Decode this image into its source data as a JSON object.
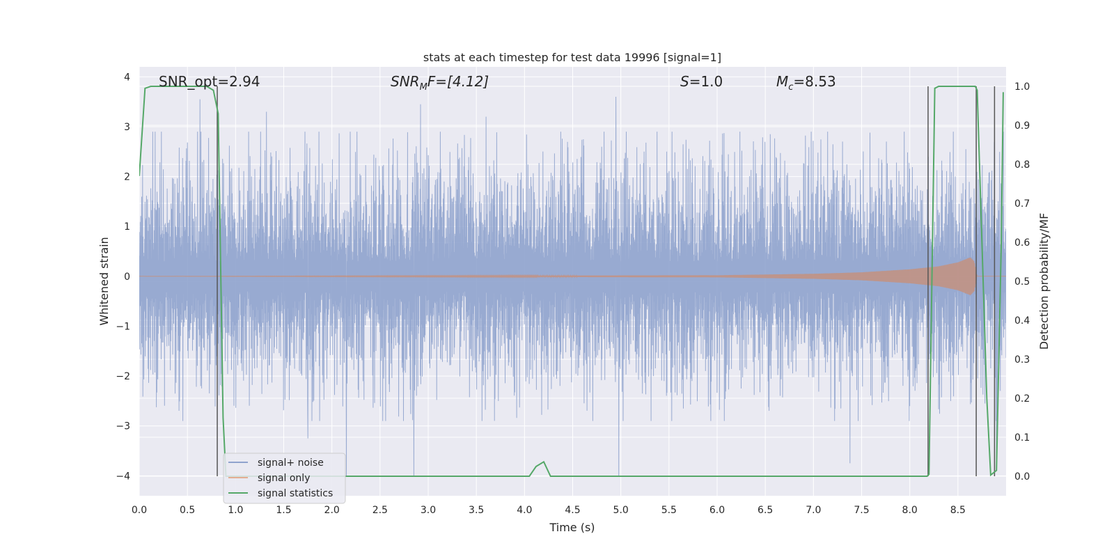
{
  "chart_data": {
    "type": "line",
    "title": "stats at each timestep for test data 19996 [signal=1]",
    "xlabel": "Time (s)",
    "ylabel": "Whitened strain",
    "ylabel_right": "Detection probability/MF",
    "xlim": [
      0.0,
      9.0
    ],
    "ylim": [
      -4.4,
      4.2
    ],
    "ylim_right": [
      -0.05,
      1.05
    ],
    "x_ticks": [
      "0.0",
      "0.5",
      "1.0",
      "1.5",
      "2.0",
      "2.5",
      "3.0",
      "3.5",
      "4.0",
      "4.5",
      "5.0",
      "5.5",
      "6.0",
      "6.5",
      "7.0",
      "7.5",
      "8.0",
      "8.5"
    ],
    "y_ticks": [
      "4",
      "3",
      "2",
      "1",
      "0",
      "−1",
      "−2",
      "−3",
      "−4"
    ],
    "y_ticks_right": [
      "1.0",
      "0.9",
      "0.8",
      "0.7",
      "0.6",
      "0.5",
      "0.4",
      "0.3",
      "0.2",
      "0.1",
      "0.0"
    ],
    "grid": true,
    "legend": {
      "placement": "lower-left",
      "entries": [
        {
          "name": "signal+ noise",
          "color": "#8fa3cd"
        },
        {
          "name": "signal only",
          "color": "#dd8452"
        },
        {
          "name": "signal statistics",
          "color": "#55a868"
        }
      ]
    },
    "annotations": {
      "snr_opt": "SNR_opt=2.94",
      "snr_mf_base": "SNR",
      "snr_mf_sub": "M",
      "snr_mf_rest": "F=[4.12]",
      "s_base": "S",
      "s_rest": "=1.0",
      "mc_base": "M",
      "mc_sub": "c",
      "mc_rest": "=8.53"
    },
    "series": [
      {
        "name": "signal+ noise",
        "kind": "noise",
        "x_range": [
          0.0,
          9.0
        ],
        "envelope_typical": 1.8,
        "extremes": [
          {
            "x": 0.63,
            "y": 3.55
          },
          {
            "x": 1.32,
            "y": 3.3
          },
          {
            "x": 2.15,
            "y": -4.0
          },
          {
            "x": 2.85,
            "y": -4.0
          },
          {
            "x": 2.92,
            "y": 3.45
          },
          {
            "x": 4.95,
            "y": 3.6
          },
          {
            "x": 4.98,
            "y": -4.0
          },
          {
            "x": 7.38,
            "y": -3.75
          },
          {
            "x": 8.78,
            "y": -2.55
          },
          {
            "x": 8.9,
            "y": -3.8
          },
          {
            "x": 1.75,
            "y": -3.25
          },
          {
            "x": 3.6,
            "y": 3.2
          }
        ]
      },
      {
        "name": "signal only",
        "kind": "chirp",
        "x": [
          0.0,
          6.0,
          7.0,
          7.5,
          8.0,
          8.3,
          8.5,
          8.63,
          8.67,
          8.7,
          9.0
        ],
        "amplitude": [
          0.0,
          0.02,
          0.05,
          0.08,
          0.14,
          0.2,
          0.28,
          0.38,
          0.3,
          0.0,
          0.0
        ]
      },
      {
        "name": "signal statistics",
        "axis": "right",
        "x": [
          0.0,
          0.06,
          0.12,
          0.2,
          0.5,
          0.7,
          0.77,
          0.82,
          0.87,
          0.9,
          0.95,
          1.2,
          2.0,
          4.05,
          4.12,
          4.2,
          4.27,
          8.18,
          8.2,
          8.26,
          8.3,
          8.68,
          8.7,
          8.8,
          8.84,
          8.9,
          8.95,
          8.97
        ],
        "y": [
          0.77,
          0.995,
          1.0,
          1.0,
          1.0,
          1.0,
          0.99,
          0.93,
          0.15,
          0.0,
          0.0,
          0.0,
          0.0,
          0.0,
          0.025,
          0.037,
          0.0,
          0.0,
          0.005,
          0.995,
          1.0,
          1.0,
          0.99,
          0.2,
          0.003,
          0.015,
          0.6,
          0.985
        ]
      }
    ],
    "vertical_lines": [
      0.81,
      8.19,
      8.69,
      8.88
    ]
  }
}
